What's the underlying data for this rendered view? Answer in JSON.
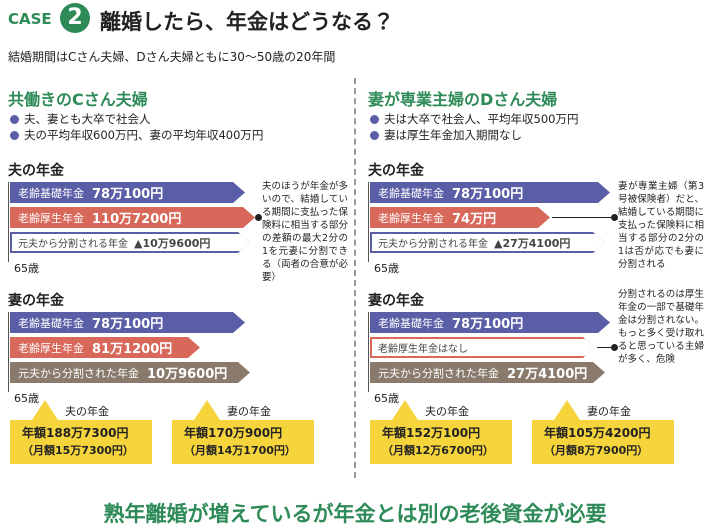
{
  "header": {
    "case": "CASE",
    "number": "2",
    "title": "離婚したら、年金はどうなる？"
  },
  "subtitle": "結婚期間はCさん夫婦、Dさん夫婦ともに30～50歳の20年間",
  "panels": [
    {
      "heading": "共働きのCさん夫婦",
      "bullets": [
        "夫、妻とも大卒で社会人",
        "夫の平均年収600万円、妻の平均年収400万円"
      ],
      "husband": {
        "label": "夫の年金",
        "bars": [
          {
            "label": "老齢基礎年金",
            "amount": "78万100円"
          },
          {
            "label": "老齢厚生年金",
            "amount": "110万7200円"
          },
          {
            "label": "元夫から分割される年金",
            "amount": "▲10万9600円"
          }
        ],
        "age": "65歳",
        "note": "夫のほうが年金が多いので、結婚している期間に支払った保険料に相当する部分の差額の最大2分の1を元妻に分割できる（両者の合意が必要）"
      },
      "wife": {
        "label": "妻の年金",
        "bars": [
          {
            "label": "老齢基礎年金",
            "amount": "78万100円"
          },
          {
            "label": "老齢厚生年金",
            "amount": "81万1200円"
          },
          {
            "label": "元夫から分割された年金",
            "amount": "10万9600円"
          }
        ],
        "age": "65歳"
      },
      "totals": [
        {
          "label": "夫の年金",
          "annual": "年額188万7300円",
          "monthly": "（月額15万7300円）"
        },
        {
          "label": "妻の年金",
          "annual": "年額170万900円",
          "monthly": "（月額14万1700円）"
        }
      ]
    },
    {
      "heading": "妻が専業主婦のDさん夫婦",
      "bullets": [
        "夫は大卒で社会人、平均年収500万円",
        "妻は厚生年金加入期間なし"
      ],
      "husband": {
        "label": "夫の年金",
        "bars": [
          {
            "label": "老齢基礎年金",
            "amount": "78万100円"
          },
          {
            "label": "老齢厚生年金",
            "amount": "74万円"
          },
          {
            "label": "元夫から分割される年金",
            "amount": "▲27万4100円"
          }
        ],
        "age": "65歳",
        "note": "妻が専業主婦（第3号被保険者）だと、結婚している期間に支払った保険料に相当する部分の2分の1は否が応でも妻に分割される"
      },
      "wife": {
        "label": "妻の年金",
        "bars": [
          {
            "label": "老齢基礎年金",
            "amount": "78万100円"
          },
          {
            "label": "老齢厚生年金はなし"
          },
          {
            "label": "元夫から分割された年金",
            "amount": "27万4100円"
          }
        ],
        "age": "65歳",
        "note": "分割されるのは厚生年金の一部で基礎年金は分割されない。もっと多く受け取れると思っている主婦が多く、危険"
      },
      "totals": [
        {
          "label": "夫の年金",
          "annual": "年額152万100円",
          "monthly": "（月額12万6700円）"
        },
        {
          "label": "妻の年金",
          "annual": "年額105万4200円",
          "monthly": "（月額8万7900円）"
        }
      ]
    }
  ],
  "footer": "熟年離婚が増えているが年金とは別の老後資金が必要"
}
